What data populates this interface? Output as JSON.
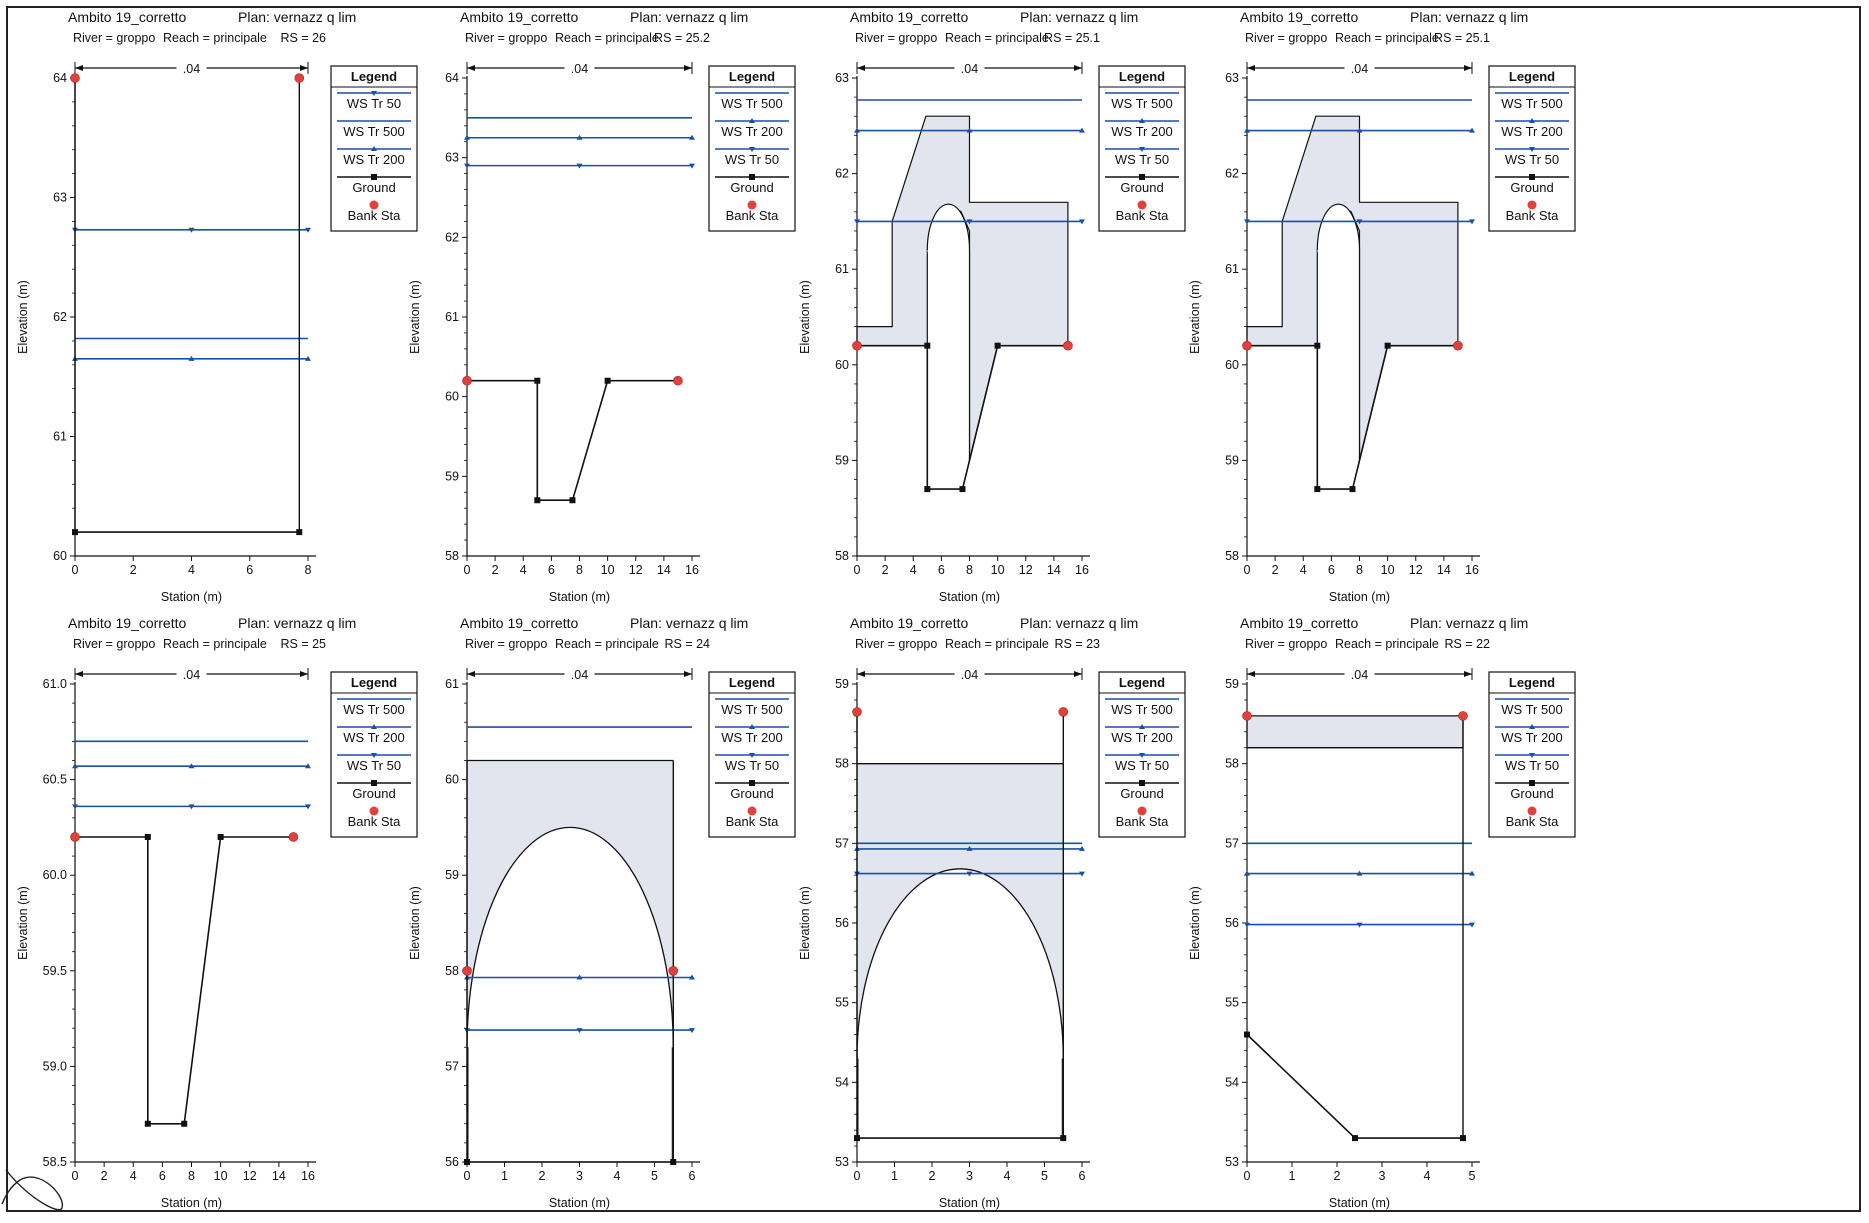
{
  "page": {
    "legend_title": "Legend",
    "bank_label": "Bank Sta",
    "ground_label": "Ground",
    "ylabel": "Elevation (m)",
    "xlabel": "Station (m)",
    "colors": {
      "ws": "#1a4fa8",
      "ground": "#111111",
      "bank": "#e2403a",
      "fill": "#e3e5ee"
    }
  },
  "chart_data": [
    {
      "type": "line",
      "project": "Ambito 19_corretto",
      "plan": "Plan: vernazz q lim",
      "river": "River = groppo",
      "reach": "Reach = principale",
      "rs": "RS = 26",
      "manning": ".04",
      "xlim": [
        0,
        8
      ],
      "xticks": [
        0,
        2,
        4,
        6,
        8
      ],
      "xtick_labels": [
        "0",
        "2",
        "4",
        "6",
        "8"
      ],
      "ylim": [
        60,
        64
      ],
      "yticks": [
        60,
        61,
        62,
        63,
        64
      ],
      "ytick_labels": [
        "60",
        "61",
        "62",
        "63",
        "64"
      ],
      "ground": [
        [
          0,
          60.2
        ],
        [
          7.7,
          60.2
        ]
      ],
      "ground_left": [
        [
          0,
          64
        ],
        [
          0,
          60.2
        ]
      ],
      "ground_right": [
        [
          7.7,
          60.2
        ],
        [
          7.7,
          64
        ]
      ],
      "banks": [
        [
          0,
          64
        ],
        [
          7.7,
          64
        ]
      ],
      "ws": [
        {
          "name": "WS Tr 50",
          "elev": 62.73,
          "marker": "down"
        },
        {
          "name": "WS Tr 500",
          "elev": 61.82,
          "marker": "none"
        },
        {
          "name": "WS Tr 200",
          "elev": 61.65,
          "marker": "up"
        }
      ],
      "legend": [
        "WS Tr 50",
        "WS Tr 500",
        "WS Tr 200",
        "Ground",
        "Bank Sta"
      ],
      "fills": []
    },
    {
      "type": "line",
      "project": "Ambito 19_corretto",
      "plan": "Plan: vernazz q lim",
      "river": "River = groppo",
      "reach": "Reach = principale",
      "rs": "RS = 25.2",
      "manning": ".04",
      "xlim": [
        0,
        16
      ],
      "xticks": [
        0,
        2,
        4,
        6,
        8,
        10,
        12,
        14,
        16
      ],
      "xtick_labels": [
        "0",
        "2",
        "4",
        "6",
        "8",
        "10",
        "12",
        "14",
        "16"
      ],
      "ylim": [
        58,
        64
      ],
      "yticks": [
        58,
        59,
        60,
        61,
        62,
        63,
        64
      ],
      "ytick_labels": [
        "58",
        "59",
        "60",
        "61",
        "62",
        "63",
        "64"
      ],
      "ground": [
        [
          0,
          60.2
        ],
        [
          5,
          60.2
        ],
        [
          5,
          58.7
        ],
        [
          7.5,
          58.7
        ],
        [
          10,
          60.2
        ],
        [
          15,
          60.2
        ]
      ],
      "banks": [
        [
          0,
          60.2
        ],
        [
          15,
          60.2
        ]
      ],
      "ws": [
        {
          "name": "WS Tr 500",
          "elev": 63.5,
          "marker": "none"
        },
        {
          "name": "WS Tr 200",
          "elev": 63.25,
          "marker": "up"
        },
        {
          "name": "WS Tr 50",
          "elev": 62.9,
          "marker": "down"
        }
      ],
      "legend": [
        "WS Tr 500",
        "WS Tr 200",
        "WS Tr 50",
        "Ground",
        "Bank Sta"
      ],
      "fills": []
    },
    {
      "type": "line",
      "project": "Ambito 19_corretto",
      "plan": "Plan: vernazz q lim",
      "river": "River = groppo",
      "reach": "Reach = principale",
      "rs": "RS = 25.1",
      "manning": ".04",
      "xlim": [
        0,
        16
      ],
      "xticks": [
        0,
        2,
        4,
        6,
        8,
        10,
        12,
        14,
        16
      ],
      "xtick_labels": [
        "0",
        "2",
        "4",
        "6",
        "8",
        "10",
        "12",
        "14",
        "16"
      ],
      "ylim": [
        58,
        63
      ],
      "yticks": [
        58,
        59,
        60,
        61,
        62,
        63
      ],
      "ytick_labels": [
        "58",
        "59",
        "60",
        "61",
        "62",
        "63"
      ],
      "ground": [
        [
          0,
          60.2
        ],
        [
          5,
          60.2
        ],
        [
          5,
          58.7
        ],
        [
          7.5,
          58.7
        ],
        [
          10,
          60.2
        ],
        [
          15,
          60.2
        ]
      ],
      "banks": [
        [
          0,
          60.2
        ],
        [
          15,
          60.2
        ]
      ],
      "ws": [
        {
          "name": "WS Tr 500",
          "elev": 62.77,
          "marker": "none"
        },
        {
          "name": "WS Tr 200",
          "elev": 62.45,
          "marker": "up"
        },
        {
          "name": "WS Tr 50",
          "elev": 61.5,
          "marker": "down"
        }
      ],
      "legend": [
        "WS Tr 500",
        "WS Tr 200",
        "WS Tr 50",
        "Ground",
        "Bank Sta"
      ],
      "fills": [
        [
          [
            0,
            60.2
          ],
          [
            0,
            60.4
          ],
          [
            2.5,
            60.4
          ],
          [
            2.5,
            61.5
          ],
          [
            4.9,
            62.6
          ],
          [
            8,
            62.6
          ],
          [
            8,
            61.7
          ],
          [
            15,
            61.7
          ],
          [
            15,
            60.2
          ],
          [
            10,
            60.2
          ],
          [
            8,
            59.0
          ],
          [
            8,
            61.4
          ],
          [
            7.4,
            61.6
          ],
          [
            6.5,
            61.68
          ],
          [
            5.4,
            61.5
          ],
          [
            5,
            61.2
          ],
          [
            5,
            60.2
          ]
        ]
      ],
      "arch": {
        "x0": 5,
        "x1": 8,
        "crown": 61.68,
        "spring": 59.0
      }
    },
    {
      "type": "line",
      "project": "Ambito 19_corretto",
      "plan": "Plan: vernazz q lim",
      "river": "River = groppo",
      "reach": "Reach = principale",
      "rs": "RS = 25.1",
      "manning": ".04",
      "xlim": [
        0,
        16
      ],
      "xticks": [
        0,
        2,
        4,
        6,
        8,
        10,
        12,
        14,
        16
      ],
      "xtick_labels": [
        "0",
        "2",
        "4",
        "6",
        "8",
        "10",
        "12",
        "14",
        "16"
      ],
      "ylim": [
        58,
        63
      ],
      "yticks": [
        58,
        59,
        60,
        61,
        62,
        63
      ],
      "ytick_labels": [
        "58",
        "59",
        "60",
        "61",
        "62",
        "63"
      ],
      "ground": [
        [
          0,
          60.2
        ],
        [
          5,
          60.2
        ],
        [
          5,
          58.7
        ],
        [
          7.5,
          58.7
        ],
        [
          10,
          60.2
        ],
        [
          15,
          60.2
        ]
      ],
      "banks": [
        [
          0,
          60.2
        ],
        [
          15,
          60.2
        ]
      ],
      "ws": [
        {
          "name": "WS Tr 500",
          "elev": 62.77,
          "marker": "none"
        },
        {
          "name": "WS Tr 200",
          "elev": 62.45,
          "marker": "up"
        },
        {
          "name": "WS Tr 50",
          "elev": 61.5,
          "marker": "down"
        }
      ],
      "legend": [
        "WS Tr 500",
        "WS Tr 200",
        "WS Tr 50",
        "Ground",
        "Bank Sta"
      ],
      "fills": [
        [
          [
            0,
            60.2
          ],
          [
            0,
            60.4
          ],
          [
            2.5,
            60.4
          ],
          [
            2.5,
            61.5
          ],
          [
            4.9,
            62.6
          ],
          [
            8,
            62.6
          ],
          [
            8,
            61.7
          ],
          [
            15,
            61.7
          ],
          [
            15,
            60.2
          ],
          [
            10,
            60.2
          ],
          [
            8,
            59.0
          ],
          [
            8,
            61.4
          ],
          [
            7.4,
            61.6
          ],
          [
            6.5,
            61.68
          ],
          [
            5.4,
            61.5
          ],
          [
            5,
            61.2
          ],
          [
            5,
            60.2
          ]
        ]
      ],
      "arch": {
        "x0": 5,
        "x1": 8,
        "crown": 61.68,
        "spring": 59.0
      }
    },
    {
      "type": "line",
      "project": "Ambito 19_corretto",
      "plan": "Plan: vernazz q lim",
      "river": "River = groppo",
      "reach": "Reach = principale",
      "rs": "RS = 25",
      "manning": ".04",
      "xlim": [
        0,
        16
      ],
      "xticks": [
        0,
        2,
        4,
        6,
        8,
        10,
        12,
        14,
        16
      ],
      "xtick_labels": [
        "0",
        "2",
        "4",
        "6",
        "8",
        "10",
        "12",
        "14",
        "16"
      ],
      "ylim": [
        58.5,
        61.0
      ],
      "yticks": [
        58.5,
        59.0,
        59.5,
        60.0,
        60.5,
        61.0
      ],
      "ytick_labels": [
        "58.5",
        "59.0",
        "59.5",
        "60.0",
        "60.5",
        "61.0"
      ],
      "ground": [
        [
          0,
          60.2
        ],
        [
          5,
          60.2
        ],
        [
          5,
          58.7
        ],
        [
          7.5,
          58.7
        ],
        [
          10,
          60.2
        ],
        [
          15,
          60.2
        ]
      ],
      "banks": [
        [
          0,
          60.2
        ],
        [
          15,
          60.2
        ]
      ],
      "ws": [
        {
          "name": "WS Tr 500",
          "elev": 60.7,
          "marker": "none"
        },
        {
          "name": "WS Tr 200",
          "elev": 60.57,
          "marker": "up"
        },
        {
          "name": "WS Tr 50",
          "elev": 60.36,
          "marker": "down"
        }
      ],
      "legend": [
        "WS Tr 500",
        "WS Tr 200",
        "WS Tr 50",
        "Ground",
        "Bank Sta"
      ],
      "fills": []
    },
    {
      "type": "line",
      "project": "Ambito 19_corretto",
      "plan": "Plan: vernazz q lim",
      "river": "River = groppo",
      "reach": "Reach = principale",
      "rs": "RS = 24",
      "manning": ".04",
      "xlim": [
        0,
        6
      ],
      "xticks": [
        0,
        1,
        2,
        3,
        4,
        5,
        6
      ],
      "xtick_labels": [
        "0",
        "1",
        "2",
        "3",
        "4",
        "5",
        "6"
      ],
      "ylim": [
        56,
        61
      ],
      "yticks": [
        56,
        57,
        58,
        59,
        60,
        61
      ],
      "ytick_labels": [
        "56",
        "57",
        "58",
        "59",
        "60",
        "61"
      ],
      "ground": [
        [
          0,
          56
        ],
        [
          5.5,
          56
        ]
      ],
      "ground_left": [
        [
          0,
          60.2
        ],
        [
          0,
          56
        ]
      ],
      "ground_right": [
        [
          5.5,
          56
        ],
        [
          5.5,
          60.2
        ]
      ],
      "top_line": [
        [
          0,
          60.2
        ],
        [
          5.5,
          60.2
        ]
      ],
      "banks": [
        [
          0,
          58
        ],
        [
          5.5,
          58
        ]
      ],
      "ws": [
        {
          "name": "WS Tr 500",
          "elev": 60.55,
          "marker": "none"
        },
        {
          "name": "WS Tr 200",
          "elev": 57.93,
          "marker": "up"
        },
        {
          "name": "WS Tr 50",
          "elev": 57.38,
          "marker": "down"
        }
      ],
      "legend": [
        "WS Tr 500",
        "WS Tr 200",
        "WS Tr 50",
        "Ground",
        "Bank Sta"
      ],
      "fills": "arch-deck",
      "arch": {
        "x0": 0,
        "x1": 5.5,
        "crown": 59.5,
        "spring": 57.2,
        "deck": 60.2
      }
    },
    {
      "type": "line",
      "project": "Ambito 19_corretto",
      "plan": "Plan: vernazz q lim",
      "river": "River = groppo",
      "reach": "Reach = principale",
      "rs": "RS = 23",
      "manning": ".04",
      "xlim": [
        0,
        6
      ],
      "xticks": [
        0,
        1,
        2,
        3,
        4,
        5,
        6
      ],
      "xtick_labels": [
        "0",
        "1",
        "2",
        "3",
        "4",
        "5",
        "6"
      ],
      "ylim": [
        53,
        59
      ],
      "yticks": [
        53,
        54,
        55,
        56,
        57,
        58,
        59
      ],
      "ytick_labels": [
        "53",
        "54",
        "55",
        "56",
        "57",
        "58",
        "59"
      ],
      "ground": [
        [
          0,
          53.3
        ],
        [
          5.5,
          53.3
        ]
      ],
      "ground_left": [
        [
          0,
          58.65
        ],
        [
          0,
          53.3
        ]
      ],
      "ground_right": [
        [
          5.5,
          53.3
        ],
        [
          5.5,
          58.65
        ]
      ],
      "top_line": [
        [
          0,
          58
        ],
        [
          5.5,
          58
        ]
      ],
      "banks": [
        [
          0,
          58.65
        ],
        [
          5.5,
          58.65
        ]
      ],
      "ws": [
        {
          "name": "WS Tr 500",
          "elev": 57.0,
          "marker": "none"
        },
        {
          "name": "WS Tr 200",
          "elev": 56.93,
          "marker": "up"
        },
        {
          "name": "WS Tr 50",
          "elev": 56.62,
          "marker": "down"
        }
      ],
      "legend": [
        "WS Tr 500",
        "WS Tr 200",
        "WS Tr 50",
        "Ground",
        "Bank Sta"
      ],
      "fills": "arch-deck",
      "arch": {
        "x0": 0,
        "x1": 5.5,
        "crown": 56.68,
        "spring": 54.3,
        "deck": 58.0
      }
    },
    {
      "type": "line",
      "project": "Ambito 19_corretto",
      "plan": "Plan: vernazz q lim",
      "river": "River = groppo",
      "reach": "Reach = principale",
      "rs": "RS = 22",
      "manning": ".04",
      "xlim": [
        0,
        5
      ],
      "xticks": [
        0,
        1,
        2,
        3,
        4,
        5
      ],
      "xtick_labels": [
        "0",
        "1",
        "2",
        "3",
        "4",
        "5"
      ],
      "ylim": [
        53,
        59
      ],
      "yticks": [
        53,
        54,
        55,
        56,
        57,
        58,
        59
      ],
      "ytick_labels": [
        "53",
        "54",
        "55",
        "56",
        "57",
        "58",
        "59"
      ],
      "ground": [
        [
          0,
          54.6
        ],
        [
          2.4,
          53.3
        ],
        [
          4.8,
          53.3
        ]
      ],
      "ground_right": [
        [
          4.8,
          53.3
        ],
        [
          4.8,
          58.6
        ]
      ],
      "top_line": [
        [
          0,
          58.2
        ],
        [
          4.8,
          58.2
        ]
      ],
      "banks": [
        [
          0,
          58.6
        ],
        [
          4.8,
          58.6
        ]
      ],
      "ws": [
        {
          "name": "WS Tr 500",
          "elev": 57.0,
          "marker": "none"
        },
        {
          "name": "WS Tr 200",
          "elev": 56.62,
          "marker": "up"
        },
        {
          "name": "WS Tr 50",
          "elev": 55.98,
          "marker": "down"
        }
      ],
      "legend": [
        "WS Tr 500",
        "WS Tr 200",
        "WS Tr 50",
        "Ground",
        "Bank Sta"
      ],
      "fills": [
        [
          [
            0,
            58.2
          ],
          [
            4.8,
            58.2
          ],
          [
            4.8,
            58.6
          ],
          [
            0,
            58.6
          ]
        ]
      ]
    }
  ]
}
